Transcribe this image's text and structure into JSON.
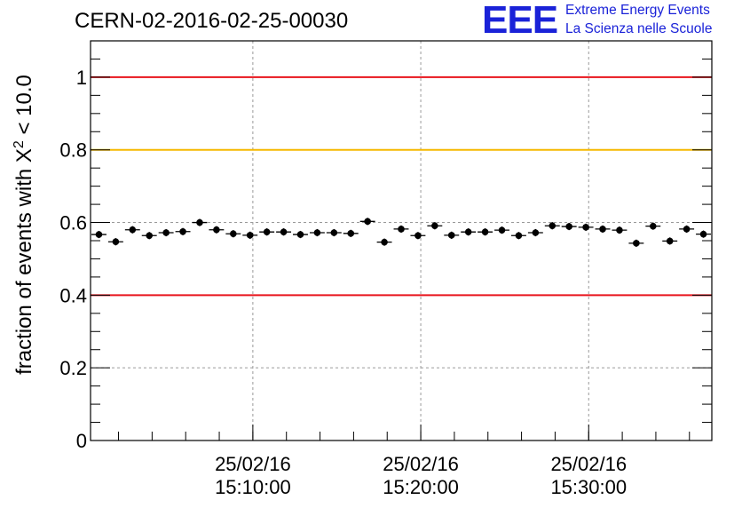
{
  "header": {
    "run_title": "CERN-02-2016-02-25-00030"
  },
  "logo": {
    "mark": "EEE",
    "line1": "Extreme Energy Events",
    "line2": "La Scienza nelle Scuole",
    "color": "#1a22d8"
  },
  "chart_data": {
    "type": "scatter",
    "ylabel_prefix": "fraction of events with X",
    "ylabel_superscript": "2",
    "ylabel_suffix": " < 10.0",
    "ylim": [
      0,
      1.1
    ],
    "yticks": [
      0,
      0.2,
      0.4,
      0.6,
      0.8,
      1
    ],
    "ytick_labels": [
      "0",
      "0.2",
      "0.4",
      "0.6",
      "0.8",
      "1"
    ],
    "xlim": [
      "25/02/16 15:00:20",
      "25/02/16 15:37:20"
    ],
    "xticks": [
      {
        "x": "25/02/16 15:10:00",
        "date": "25/02/16",
        "time": "15:10:00"
      },
      {
        "x": "25/02/16 15:20:00",
        "date": "25/02/16",
        "time": "15:20:00"
      },
      {
        "x": "25/02/16 15:30:00",
        "date": "25/02/16",
        "time": "15:30:00"
      }
    ],
    "grid": true,
    "reference_lines": [
      {
        "y": 1.0,
        "color": "#e8141c"
      },
      {
        "y": 0.8,
        "color": "#f5b800"
      },
      {
        "y": 0.4,
        "color": "#e8141c"
      }
    ],
    "marker_color": "#000000",
    "series": [
      {
        "x": [
          "15:00:50",
          "15:01:50",
          "15:02:50",
          "15:03:50",
          "15:04:50",
          "15:05:50",
          "15:06:50",
          "15:07:50",
          "15:08:50",
          "15:09:50",
          "15:10:50",
          "15:11:50",
          "15:12:50",
          "15:13:50",
          "15:14:50",
          "15:15:50",
          "15:16:50",
          "15:17:50",
          "15:18:50",
          "15:19:50",
          "15:20:50",
          "15:21:50",
          "15:22:50",
          "15:23:50",
          "15:24:50",
          "15:25:50",
          "15:26:50",
          "15:27:50",
          "15:28:50",
          "15:29:50",
          "15:30:50",
          "15:31:50",
          "15:32:50",
          "15:33:50",
          "15:34:50",
          "15:35:50",
          "15:36:50"
        ],
        "y": [
          0.567,
          0.547,
          0.58,
          0.564,
          0.572,
          0.575,
          0.6,
          0.58,
          0.569,
          0.565,
          0.574,
          0.574,
          0.567,
          0.572,
          0.572,
          0.57,
          0.603,
          0.546,
          0.582,
          0.564,
          0.591,
          0.565,
          0.574,
          0.574,
          0.579,
          0.564,
          0.572,
          0.591,
          0.589,
          0.587,
          0.582,
          0.579,
          0.543,
          0.59,
          0.549,
          0.582,
          0.568
        ],
        "yerr": 0.01
      }
    ]
  }
}
